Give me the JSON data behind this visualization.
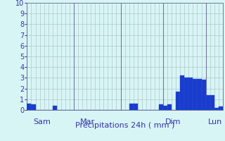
{
  "values": [
    0.6,
    0.5,
    0.0,
    0.0,
    0.0,
    0.0,
    0.4,
    0.0,
    0.0,
    0.0,
    0.0,
    0.0,
    0.0,
    0.0,
    0.0,
    0.0,
    0.0,
    0.0,
    0.0,
    0.0,
    0.0,
    0.0,
    0.0,
    0.0,
    0.6,
    0.6,
    0.0,
    0.0,
    0.0,
    0.0,
    0.0,
    0.5,
    0.4,
    0.5,
    0.0,
    1.7,
    3.2,
    3.0,
    3.0,
    2.9,
    2.9,
    2.8,
    1.4,
    1.4,
    0.2,
    0.3
  ],
  "bar_color": "#1a3bcc",
  "bar_edge_color": "#2255dd",
  "background_color": "#d8f5f5",
  "grid_color": "#b0c8c8",
  "text_color": "#3333aa",
  "xlabel": "Précipitations 24h ( mm )",
  "ylim": [
    0,
    10
  ],
  "yticks": [
    0,
    1,
    2,
    3,
    4,
    5,
    6,
    7,
    8,
    9,
    10
  ],
  "day_labels": [
    "Sam",
    "Mar",
    "Dim",
    "Lun"
  ],
  "day_label_bar_indices": [
    1,
    12,
    32,
    42
  ],
  "vline_bar_indices": [
    0,
    11,
    22,
    32,
    42
  ],
  "xlabel_fontsize": 8,
  "tick_fontsize": 7,
  "label_fontsize": 8
}
